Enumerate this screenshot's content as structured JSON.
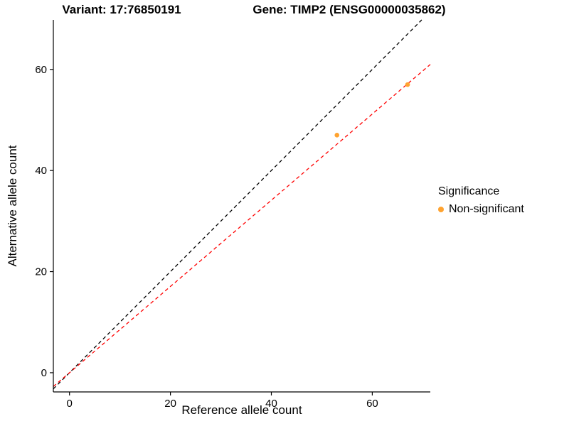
{
  "header": {
    "title_left": "Variant: 17:76850191",
    "title_right": "Gene: TIMP2 (ENSG00000035862)"
  },
  "legend": {
    "title": "Significance",
    "items": [
      {
        "label": "Non-significant",
        "color": "#FFA330"
      }
    ]
  },
  "chart_data": {
    "type": "scatter",
    "title_left": "Variant: 17:76850191",
    "title_right": "Gene: TIMP2 (ENSG00000035862)",
    "xlabel": "Reference allele count",
    "ylabel": "Alternative allele count",
    "xlim": [
      -3.2,
      71.5
    ],
    "ylim": [
      -3.8,
      69.8
    ],
    "xticks": [
      0,
      20,
      40,
      60
    ],
    "yticks": [
      0,
      20,
      40,
      60
    ],
    "grid": false,
    "legend_position": "right",
    "point_color": "#FFA330",
    "points": [
      {
        "x": 53,
        "y": 47,
        "series": "Non-significant"
      },
      {
        "x": 67,
        "y": 57,
        "series": "Non-significant"
      }
    ],
    "lines": [
      {
        "name": "identity",
        "slope": 1.0,
        "intercept": 0,
        "color": "#000000",
        "style": "dashed"
      },
      {
        "name": "fit",
        "slope": 0.853,
        "intercept": 0,
        "color": "#FF0000",
        "style": "dashed"
      }
    ]
  }
}
